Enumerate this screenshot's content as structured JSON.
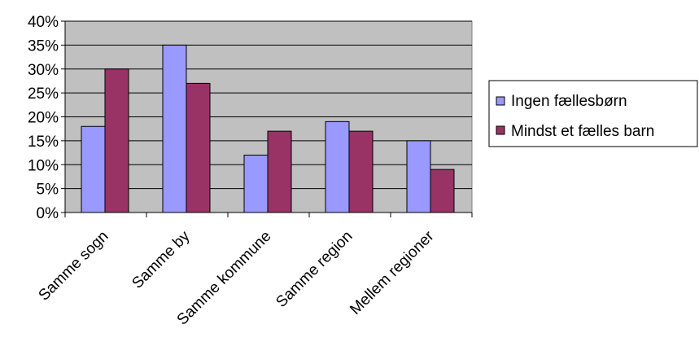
{
  "chart_data": {
    "type": "bar",
    "categories": [
      "Samme sogn",
      "Samme by",
      "Samme kommune",
      "Samme region",
      "Mellem regioner"
    ],
    "series": [
      {
        "name": "Ingen fællesbørn",
        "values": [
          18,
          35,
          12,
          19,
          15
        ],
        "color": "#9999ff"
      },
      {
        "name": "Mindst et fælles barn",
        "values": [
          30,
          27,
          17,
          17,
          9
        ],
        "color": "#993366"
      }
    ],
    "ylim": [
      0,
      40
    ],
    "yticks": [
      "0%",
      "5%",
      "10%",
      "15%",
      "20%",
      "25%",
      "30%",
      "35%",
      "40%"
    ],
    "ytick_values": [
      0,
      5,
      10,
      15,
      20,
      25,
      30,
      35,
      40
    ],
    "grid": true,
    "plot_background": "#c0c0c0",
    "legend_position": "right",
    "title": "",
    "xlabel": "",
    "ylabel": ""
  }
}
